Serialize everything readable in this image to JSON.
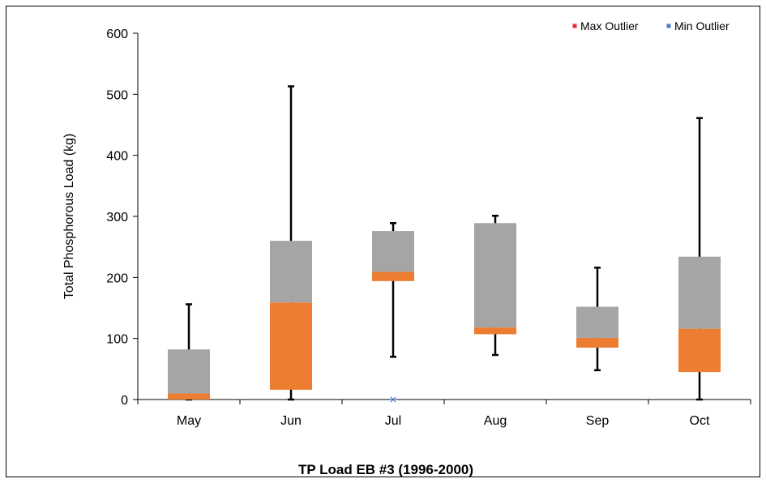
{
  "chart_data": {
    "type": "box",
    "title": "TP Load EB #3 (1996-2000)",
    "ylabel": "Total Phosphorous Load (kg)",
    "xlabel": "",
    "ylim": [
      0,
      600
    ],
    "yticks": [
      0,
      100,
      200,
      300,
      400,
      500,
      600
    ],
    "categories": [
      "May",
      "Jun",
      "Jul",
      "Aug",
      "Sep",
      "Oct"
    ],
    "series": [
      {
        "name": "min",
        "values": [
          0,
          0,
          70,
          73,
          48,
          0
        ]
      },
      {
        "name": "q1",
        "values": [
          0,
          16,
          194,
          107,
          85,
          45
        ]
      },
      {
        "name": "median",
        "values": [
          10,
          159,
          209,
          118,
          101,
          116
        ]
      },
      {
        "name": "q3",
        "values": [
          82,
          260,
          276,
          289,
          152,
          234
        ]
      },
      {
        "name": "max",
        "values": [
          156,
          513,
          289,
          301,
          216,
          461
        ]
      },
      {
        "name": "Max Outlier",
        "values": [
          null,
          null,
          null,
          null,
          null,
          null
        ]
      },
      {
        "name": "Min Outlier",
        "values": [
          null,
          null,
          0,
          null,
          null,
          null
        ]
      }
    ],
    "legend": {
      "position": "top-right",
      "items": [
        {
          "label": "Max Outlier",
          "marker": "*",
          "color": "#e01b24"
        },
        {
          "label": "Min Outlier",
          "marker": "*",
          "color": "#4472c4"
        }
      ]
    },
    "colors": {
      "lower_box": "#ed7d31",
      "upper_box": "#a5a5a5",
      "whisker": "#000000"
    },
    "grid": false
  }
}
